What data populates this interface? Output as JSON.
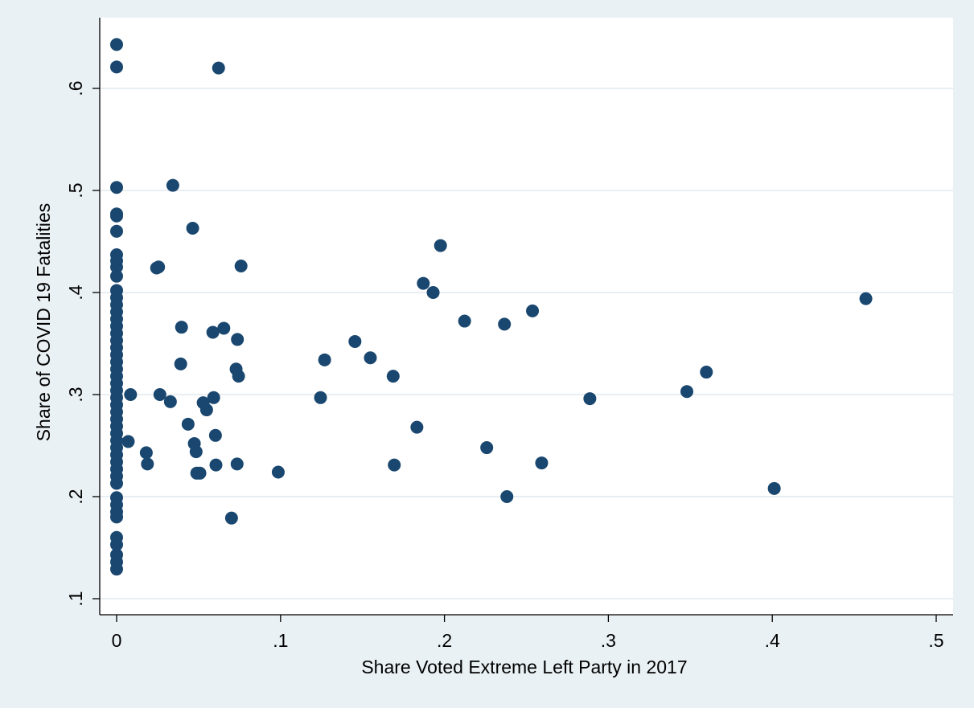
{
  "chart_data": {
    "type": "scatter",
    "xlabel": "Share Voted Extreme Left Party in 2017",
    "ylabel": "Share of COVID 19 Fatalities",
    "xlim": [
      0,
      0.5
    ],
    "ylim": [
      0.1,
      0.65
    ],
    "x_ticks": [
      {
        "value": 0,
        "label": "0"
      },
      {
        "value": 0.1,
        "label": ".1"
      },
      {
        "value": 0.2,
        "label": ".2"
      },
      {
        "value": 0.3,
        "label": ".3"
      },
      {
        "value": 0.4,
        "label": ".4"
      },
      {
        "value": 0.5,
        "label": ".5"
      }
    ],
    "y_ticks": [
      {
        "value": 0.1,
        "label": ".1"
      },
      {
        "value": 0.2,
        "label": ".2"
      },
      {
        "value": 0.3,
        "label": ".3"
      },
      {
        "value": 0.4,
        "label": ".4"
      },
      {
        "value": 0.5,
        "label": ".5"
      },
      {
        "value": 0.6,
        "label": ".6"
      }
    ],
    "grid": "horizontal",
    "colors": {
      "outer_background": "#eaf1f4",
      "plot_background": "#ffffff",
      "gridline": "#e8eef1",
      "marker": "#1a476f"
    },
    "points": [
      [
        0,
        0.643
      ],
      [
        0,
        0.621
      ],
      [
        0,
        0.503
      ],
      [
        0,
        0.477
      ],
      [
        0,
        0.475
      ],
      [
        0,
        0.46
      ],
      [
        0,
        0.437
      ],
      [
        0,
        0.431
      ],
      [
        0,
        0.425
      ],
      [
        0,
        0.416
      ],
      [
        0,
        0.402
      ],
      [
        0,
        0.395
      ],
      [
        0,
        0.388
      ],
      [
        0,
        0.381
      ],
      [
        0,
        0.374
      ],
      [
        0,
        0.367
      ],
      [
        0,
        0.36
      ],
      [
        0,
        0.353
      ],
      [
        0,
        0.346
      ],
      [
        0,
        0.339
      ],
      [
        0,
        0.332
      ],
      [
        0,
        0.325
      ],
      [
        0,
        0.318
      ],
      [
        0,
        0.311
      ],
      [
        0,
        0.304
      ],
      [
        0,
        0.297
      ],
      [
        0,
        0.29
      ],
      [
        0,
        0.283
      ],
      [
        0,
        0.276
      ],
      [
        0,
        0.269
      ],
      [
        0,
        0.262
      ],
      [
        0,
        0.255
      ],
      [
        0,
        0.248
      ],
      [
        0,
        0.241
      ],
      [
        0,
        0.234
      ],
      [
        0,
        0.227
      ],
      [
        0,
        0.22
      ],
      [
        0,
        0.213
      ],
      [
        0,
        0.199
      ],
      [
        0,
        0.192
      ],
      [
        0,
        0.185
      ],
      [
        0,
        0.18
      ],
      [
        0,
        0.16
      ],
      [
        0,
        0.153
      ],
      [
        0,
        0.143
      ],
      [
        0,
        0.136
      ],
      [
        0,
        0.129
      ],
      [
        0.0622,
        0.62
      ],
      [
        0.0343,
        0.505
      ],
      [
        0.0464,
        0.463
      ],
      [
        0.0759,
        0.426
      ],
      [
        0.0256,
        0.425
      ],
      [
        0.0244,
        0.424
      ],
      [
        0.0396,
        0.366
      ],
      [
        0.0654,
        0.365
      ],
      [
        0.0587,
        0.361
      ],
      [
        0.0737,
        0.354
      ],
      [
        0.0391,
        0.33
      ],
      [
        0.0729,
        0.325
      ],
      [
        0.0744,
        0.318
      ],
      [
        0.0085,
        0.3
      ],
      [
        0.0264,
        0.3
      ],
      [
        0.0592,
        0.297
      ],
      [
        0.0528,
        0.292
      ],
      [
        0.0328,
        0.293
      ],
      [
        0.0549,
        0.285
      ],
      [
        0.0436,
        0.271
      ],
      [
        0.0603,
        0.26
      ],
      [
        0.0474,
        0.252
      ],
      [
        0.0071,
        0.254
      ],
      [
        0.0485,
        0.244
      ],
      [
        0.0181,
        0.243
      ],
      [
        0.0188,
        0.232
      ],
      [
        0.0606,
        0.231
      ],
      [
        0.0735,
        0.232
      ],
      [
        0.0489,
        0.223
      ],
      [
        0.0508,
        0.223
      ],
      [
        0.0701,
        0.179
      ],
      [
        0.0986,
        0.224
      ],
      [
        0.1244,
        0.297
      ],
      [
        0.1269,
        0.334
      ],
      [
        0.1454,
        0.352
      ],
      [
        0.1548,
        0.336
      ],
      [
        0.1687,
        0.318
      ],
      [
        0.1694,
        0.231
      ],
      [
        0.1832,
        0.268
      ],
      [
        0.1871,
        0.409
      ],
      [
        0.1931,
        0.4
      ],
      [
        0.1976,
        0.446
      ],
      [
        0.2123,
        0.372
      ],
      [
        0.2258,
        0.248
      ],
      [
        0.2366,
        0.369
      ],
      [
        0.2381,
        0.2
      ],
      [
        0.2537,
        0.382
      ],
      [
        0.2593,
        0.233
      ],
      [
        0.2887,
        0.296
      ],
      [
        0.3479,
        0.303
      ],
      [
        0.3598,
        0.322
      ],
      [
        0.4012,
        0.208
      ],
      [
        0.4571,
        0.394
      ]
    ]
  }
}
